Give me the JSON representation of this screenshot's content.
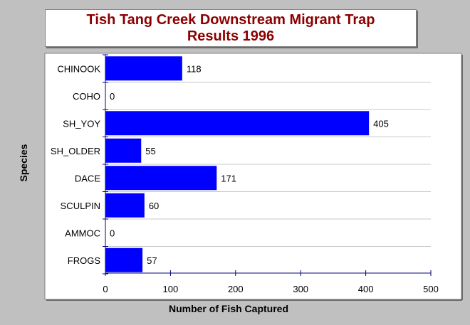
{
  "chart_data": {
    "type": "bar",
    "orientation": "horizontal",
    "title_lines": [
      "Tish Tang Creek Downstream Migrant Trap",
      "Results 1996"
    ],
    "xlabel": "Number of Fish Captured",
    "ylabel": "Species",
    "categories": [
      "CHINOOK",
      "COHO",
      "SH_YOY",
      "SH_OLDER",
      "DACE",
      "SCULPIN",
      "AMMOC",
      "FROGS"
    ],
    "values": [
      118,
      0,
      405,
      55,
      171,
      60,
      0,
      57
    ],
    "xlim": [
      0,
      500
    ],
    "xticks": [
      0,
      100,
      200,
      300,
      400,
      500
    ],
    "grid": "horizontal",
    "bar_color": "#0000ff",
    "title_color": "#8b0000",
    "plot_background": "#ffffff",
    "page_background": "#c0c0c0"
  }
}
